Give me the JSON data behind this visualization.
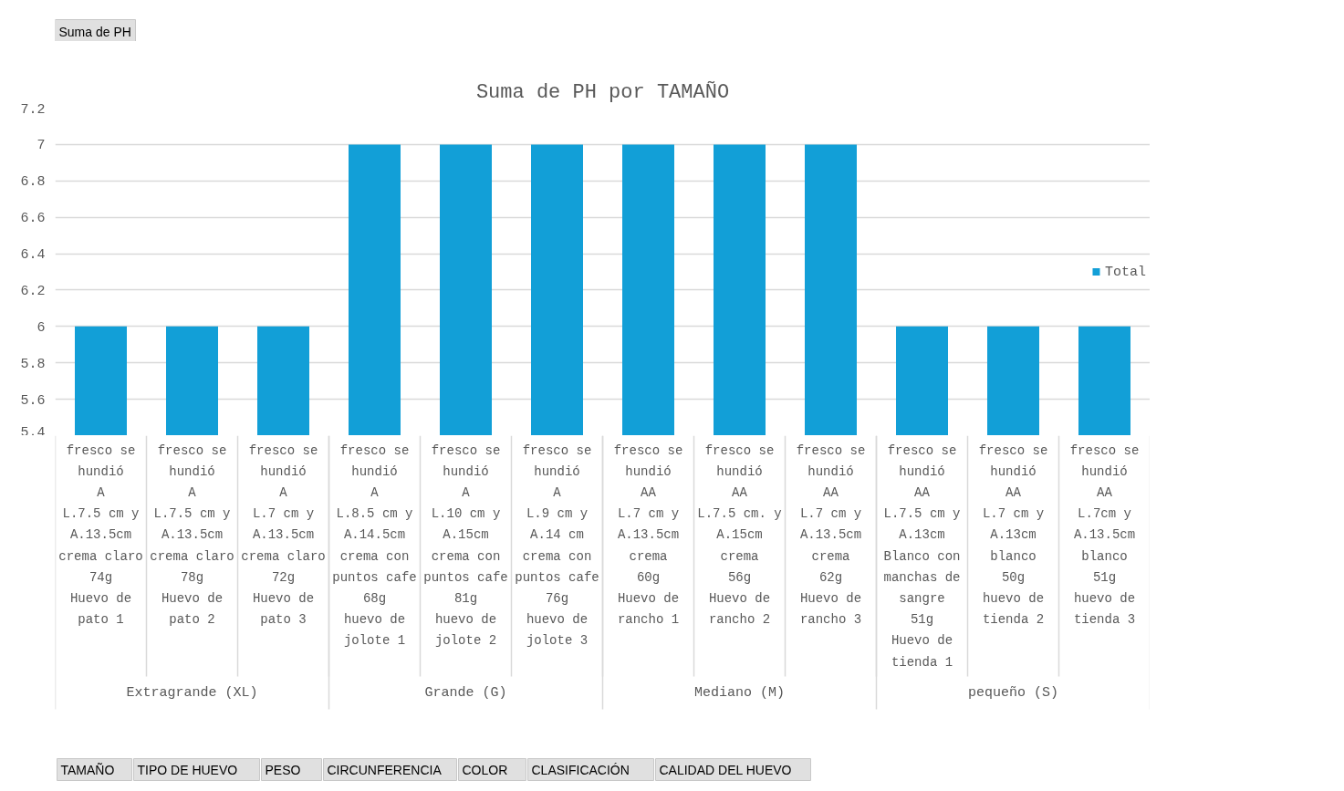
{
  "chart_data": {
    "type": "bar",
    "title": "Suma de PH por TAMAÑO",
    "categories": [
      "fresco se hundió\nA\nL.7.5 cm y A.13.5cm\ncrema claro\n74g\nHuevo de pato 1",
      "fresco se hundió\nA\nL.7.5 cm y A.13.5cm\ncrema claro\n78g\nHuevo de pato 2",
      "fresco se hundió\nA\nL.7 cm y A.13.5cm\ncrema claro\n72g\nHuevo de pato 3",
      "fresco se hundió\nA\nL.8.5 cm y A.14.5cm\ncrema con puntos cafe\n68g\nhuevo de jolote 1",
      "fresco se hundió\nA\nL.10 cm y A.15cm\ncrema con puntos cafe\n81g\nhuevo de jolote 2",
      "fresco se hundió\nA\nL.9 cm y A.14 cm\ncrema con puntos cafe\n76g\nhuevo de jolote 3",
      "fresco se hundió\nAA\nL.7 cm y A.13.5cm\ncrema\n60g\nHuevo de rancho 1",
      "fresco se hundió\nAA\nL.7.5 cm. y A.15cm\ncrema\n56g\nHuevo de rancho 2",
      "fresco se hundió\nAA\nL.7 cm y A.13.5cm\ncrema\n62g\nHuevo de rancho 3",
      "fresco se hundió\nAA\nL.7.5 cm y A.13cm\nBlanco con manchas de sangre\n51g\nHuevo de tienda 1",
      "fresco se hundió\nAA\nL.7 cm y A.13cm\nblanco\n50g\nhuevo de tienda 2",
      "fresco se hundió\nAA\nL.7cm y A.13.5cm\nblanco\n51g\nhuevo de tienda 3"
    ],
    "series": [
      {
        "name": "Total",
        "color": "#129fd7",
        "values": [
          6,
          6,
          6,
          7,
          7,
          7,
          7,
          7,
          7,
          6,
          6,
          6
        ]
      }
    ],
    "ylim": [
      5.4,
      7.2
    ],
    "yticks": [
      5.4,
      5.6,
      5.8,
      6,
      6.2,
      6.4,
      6.6,
      6.8,
      7,
      7.2
    ],
    "grid": "y",
    "legend": "right",
    "annotations": [
      "Suma de PH",
      "Extragrande (XL)",
      "Grande (G)",
      "Mediano (M)",
      "pequeño (S)",
      "TAMAÑO",
      "TIPO DE HUEVO",
      "PESO",
      "CIRCUNFERENCIA",
      "COLOR",
      "CLASIFICACIÓN",
      "CALIDAD DEL HUEVO"
    ]
  }
}
